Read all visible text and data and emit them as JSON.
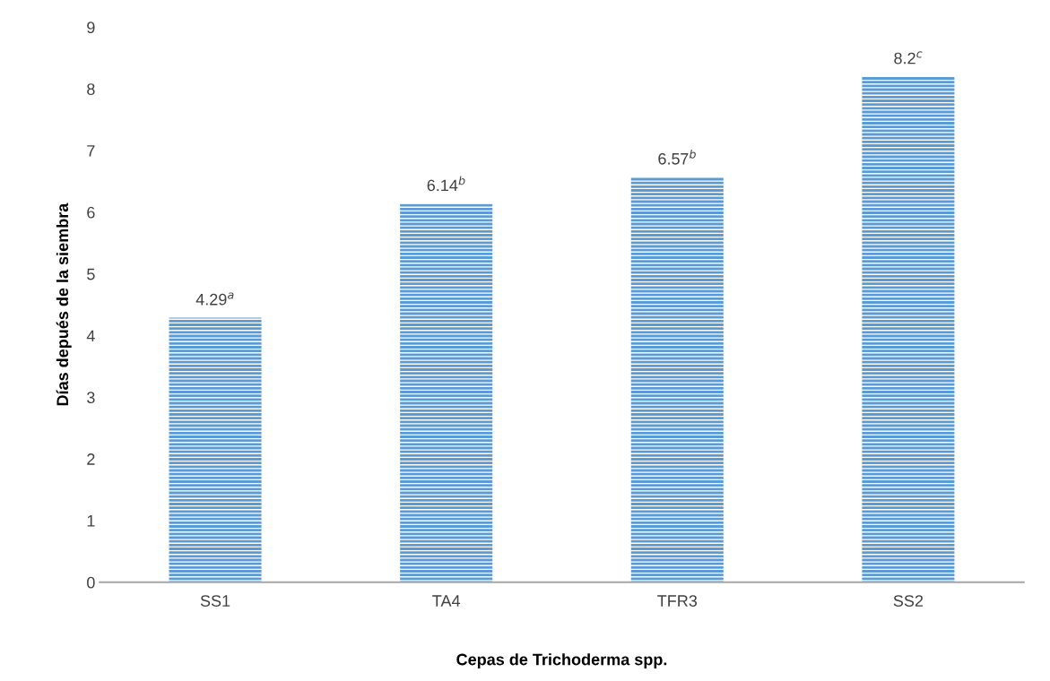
{
  "chart_data": {
    "type": "bar",
    "xlabel": "Cepas de Trichoderma spp.",
    "ylabel": "Días depués de la siembra",
    "categories": [
      "SS1",
      "TA4",
      "TFR3",
      "SS2"
    ],
    "values": [
      4.29,
      6.14,
      6.57,
      8.2
    ],
    "value_labels": [
      "4.29$^{a}$",
      "6.14$^{b}$",
      "6.57$^{b}$",
      "8.2$^{c}$"
    ],
    "color": "#5b9bd5",
    "ylim": [
      0,
      9
    ],
    "yticks": [
      0,
      1,
      2,
      3,
      4,
      5,
      6,
      7,
      8,
      9
    ],
    "grid": false
  }
}
